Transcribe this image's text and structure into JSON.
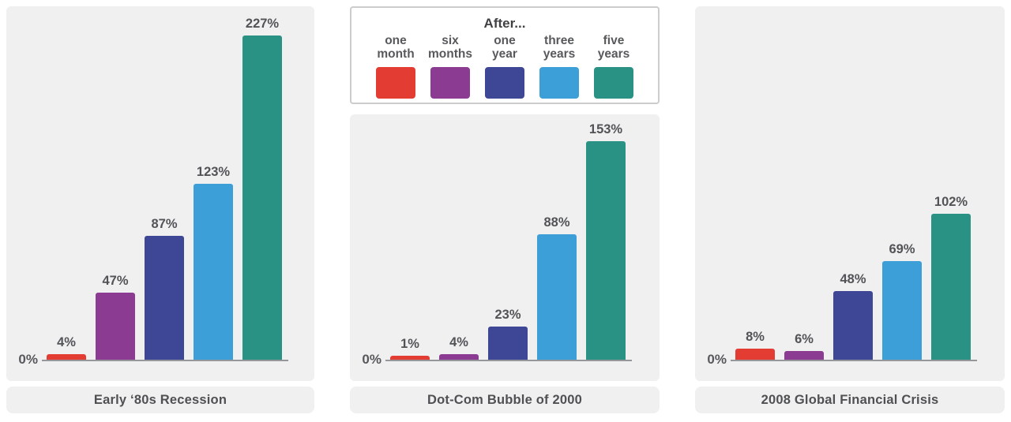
{
  "legend": {
    "title": "After...",
    "items": [
      {
        "name": "one-month",
        "label_line1": "one",
        "label_line2": "month",
        "color": "#e23c33"
      },
      {
        "name": "six-months",
        "label_line1": "six",
        "label_line2": "months",
        "color": "#8b3c92"
      },
      {
        "name": "one-year",
        "label_line1": "one",
        "label_line2": "year",
        "color": "#3e4795"
      },
      {
        "name": "three-years",
        "label_line1": "three",
        "label_line2": "years",
        "color": "#3d9fd8"
      },
      {
        "name": "five-years",
        "label_line1": "five",
        "label_line2": "years",
        "color": "#2a9284"
      }
    ]
  },
  "chart_data": [
    {
      "type": "bar",
      "title": "Early ‘80s Recession",
      "categories": [
        "one month",
        "six months",
        "one year",
        "three years",
        "five years"
      ],
      "values": [
        4,
        47,
        87,
        123,
        227
      ],
      "value_labels": [
        "4%",
        "47%",
        "87%",
        "123%",
        "227%"
      ],
      "baseline_label": "0%",
      "unit": "%",
      "ylim": [
        0,
        240
      ],
      "grid": false,
      "legend_position": "top-center-of-figure"
    },
    {
      "type": "bar",
      "title": "Dot-Com Bubble of 2000",
      "categories": [
        "one month",
        "six months",
        "one year",
        "three years",
        "five years"
      ],
      "values": [
        1,
        4,
        23,
        88,
        153
      ],
      "value_labels": [
        "1%",
        "4%",
        "23%",
        "88%",
        "153%"
      ],
      "baseline_label": "0%",
      "unit": "%",
      "ylim": [
        0,
        240
      ],
      "grid": false,
      "legend_position": "top-center-of-figure"
    },
    {
      "type": "bar",
      "title": "2008 Global Financial Crisis",
      "categories": [
        "one month",
        "six months",
        "one year",
        "three years",
        "five years"
      ],
      "values": [
        8,
        6,
        48,
        69,
        102
      ],
      "value_labels": [
        "8%",
        "6%",
        "48%",
        "69%",
        "102%"
      ],
      "baseline_label": "0%",
      "unit": "%",
      "ylim": [
        0,
        240
      ],
      "grid": false,
      "legend_position": "top-center-of-figure"
    }
  ],
  "colors": {
    "panel_background": "#f0f0f1",
    "axis": "#95979a",
    "label_text": "#525356",
    "title_text": "#4f5052",
    "legend_border": "#cccccc"
  }
}
